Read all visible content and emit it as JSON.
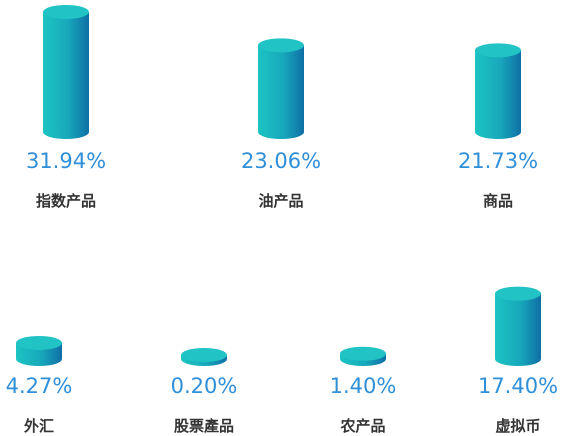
{
  "chart_data": {
    "type": "bar",
    "categories": [
      "指数产品",
      "油产品",
      "商品",
      "外汇",
      "股票產品",
      "农产品",
      "虚拟币"
    ],
    "values": [
      31.94,
      23.06,
      21.73,
      4.27,
      0.2,
      1.4,
      17.4
    ],
    "value_labels": [
      "31.94%",
      "23.06%",
      "21.73%",
      "4.27%",
      "0.20%",
      "1.40%",
      "17.40%"
    ],
    "unit": "%",
    "style": "3d-cylinders",
    "colors": {
      "cylinder_left": "#1cc4c2",
      "cylinder_right": "#0f6fa6",
      "cylinder_top": "#21c3c4",
      "value_text": "#2f8fd8",
      "label_text": "#333333"
    }
  }
}
